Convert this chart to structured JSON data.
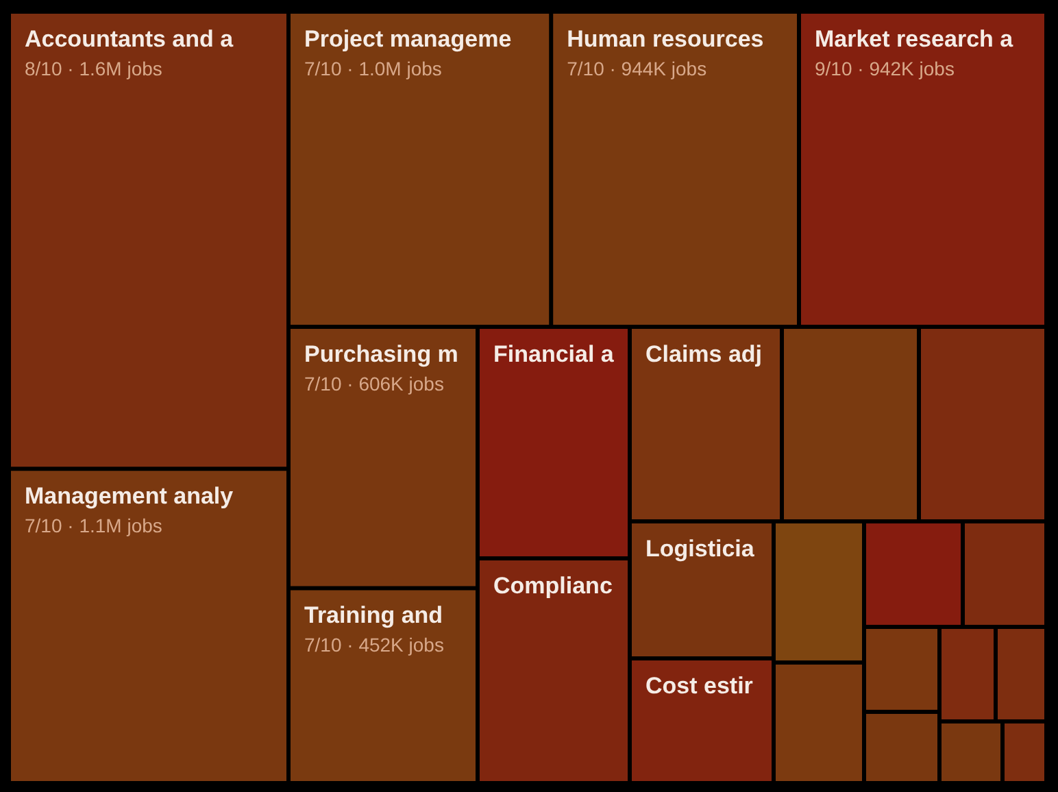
{
  "chart_data": {
    "type": "other",
    "categories": [
      "Accountants and a",
      "Project manageme",
      "Human resources",
      "Market research a",
      "Management analy",
      "Purchasing m",
      "Training and",
      "Financial a",
      "Complianc",
      "Claims adj",
      null,
      null,
      "Logisticia",
      "Cost estir",
      null,
      null,
      null,
      null,
      null,
      null,
      null,
      null,
      null,
      null
    ],
    "value_labels": [
      "8/10 · 1.6M jobs",
      "7/10 · 1.0M jobs",
      "7/10 · 944K jobs",
      "9/10 · 942K jobs",
      "7/10 · 1.1M jobs",
      "7/10 · 606K jobs",
      "7/10 · 452K jobs",
      null,
      null,
      null,
      null,
      null,
      null,
      null,
      null,
      null,
      null,
      null,
      null,
      null,
      null,
      null,
      null,
      null
    ],
    "values": [
      1600000,
      1000000,
      944000,
      942000,
      1100000,
      606000,
      452000,
      null,
      null,
      null,
      null,
      null,
      null,
      null,
      null,
      null,
      null,
      null,
      null,
      null,
      null,
      null,
      null,
      null
    ],
    "colors": [
      "#7c2e10",
      "#7a3a10",
      "#7a3a10",
      "#84200f",
      "#7a3810",
      "#7a3810",
      "#7a3a10",
      "#861c0f",
      "#80260f",
      "#7c3510",
      "#7a3a10",
      "#7e2c10",
      "#7a3510",
      "#82240f",
      "#7e4510",
      "#861c0f",
      "#7e2c10",
      "#7c3a10",
      "#7c3810",
      "#802c10",
      "#7e2e10",
      "#7a3810",
      "#7a3810",
      "#7e2e10"
    ]
  }
}
